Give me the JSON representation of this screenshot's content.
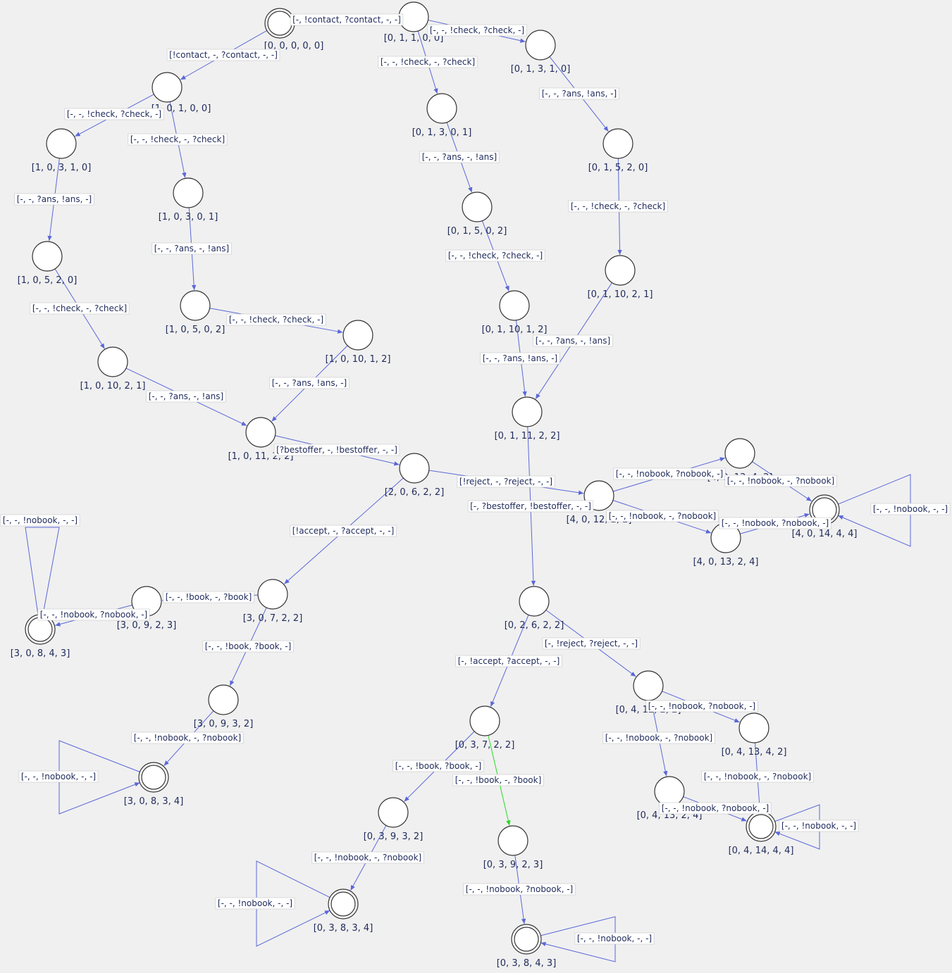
{
  "colors": {
    "edge": "#5a67d8",
    "active_edge": "#22dd22",
    "node_fill": "#ffffff",
    "label_text": "#1f2a5a",
    "background": "#f0f0f0"
  },
  "nodes": [
    {
      "id": "n0",
      "label": "[0, 0, 0, 0, 0]",
      "final": true,
      "start": true
    },
    {
      "id": "n1",
      "label": "[0, 1, 1, 0, 0]"
    },
    {
      "id": "n2",
      "label": "[1, 0, 1, 0, 0]"
    },
    {
      "id": "n3",
      "label": "[0, 1, 3, 1, 0]"
    },
    {
      "id": "n4",
      "label": "[0, 1, 3, 0, 1]"
    },
    {
      "id": "n5",
      "label": "[1, 0, 3, 1, 0]"
    },
    {
      "id": "n6",
      "label": "[1, 0, 3, 0, 1]"
    },
    {
      "id": "n7",
      "label": "[0, 1, 5, 2, 0]"
    },
    {
      "id": "n8",
      "label": "[0, 1, 5, 0, 2]"
    },
    {
      "id": "n9",
      "label": "[1, 0, 5, 2, 0]"
    },
    {
      "id": "n10",
      "label": "[1, 0, 5, 0, 2]"
    },
    {
      "id": "n11",
      "label": "[0, 1, 10, 2, 1]"
    },
    {
      "id": "n12",
      "label": "[0, 1, 10, 1, 2]"
    },
    {
      "id": "n13",
      "label": "[1, 0, 10, 1, 2]"
    },
    {
      "id": "n14",
      "label": "[1, 0, 10, 2, 1]"
    },
    {
      "id": "n15",
      "label": "[0, 1, 11, 2, 2]"
    },
    {
      "id": "n16",
      "label": "[1, 0, 11, 2, 2]"
    },
    {
      "id": "n17",
      "label": "[2, 0, 6, 2, 2]"
    },
    {
      "id": "n18",
      "label": "[4, 0, 12, 2, 2]"
    },
    {
      "id": "n19",
      "label": "[4, 0, 13, 4, 2]"
    },
    {
      "id": "n20",
      "label": "[4, 0, 14, 4, 4]",
      "final": true
    },
    {
      "id": "n21",
      "label": "[4, 0, 13, 2, 4]"
    },
    {
      "id": "n22",
      "label": "[0, 2, 6, 2, 2]"
    },
    {
      "id": "n23",
      "label": "[3, 0, 7, 2, 2]"
    },
    {
      "id": "n24",
      "label": "[3, 0, 9, 2, 3]"
    },
    {
      "id": "n25",
      "label": "[3, 0, 8, 4, 3]",
      "final": true
    },
    {
      "id": "n26",
      "label": "[3, 0, 9, 3, 2]"
    },
    {
      "id": "n27",
      "label": "[3, 0, 8, 3, 4]",
      "final": true
    },
    {
      "id": "n28",
      "label": "[0, 4, 12, 2, 2]"
    },
    {
      "id": "n29",
      "label": "[0, 4, 13, 4, 2]"
    },
    {
      "id": "n30",
      "label": "[0, 4, 13, 2, 4]"
    },
    {
      "id": "n31",
      "label": "[0, 4, 14, 4, 4]",
      "final": true
    },
    {
      "id": "n32",
      "label": "[0, 3, 7, 2, 2]"
    },
    {
      "id": "n33",
      "label": "[0, 3, 9, 3, 2]"
    },
    {
      "id": "n34",
      "label": "[0, 3, 9, 2, 3]"
    },
    {
      "id": "n35",
      "label": "[0, 3, 8, 3, 4]",
      "final": true
    },
    {
      "id": "n36",
      "label": "[0, 3, 8, 4, 3]",
      "final": true
    }
  ],
  "edges": [
    {
      "from": "n0",
      "to": "n1",
      "label": "[-, !contact, ?contact, -, -]"
    },
    {
      "from": "n0",
      "to": "n2",
      "label": "[!contact, -, ?contact, -, -]"
    },
    {
      "from": "n1",
      "to": "n3",
      "label": "[-, -, !check, ?check, -]"
    },
    {
      "from": "n1",
      "to": "n4",
      "label": "[-, -, !check, -, ?check]"
    },
    {
      "from": "n2",
      "to": "n5",
      "label": "[-, -, !check, ?check, -]"
    },
    {
      "from": "n2",
      "to": "n6",
      "label": "[-, -, !check, -, ?check]"
    },
    {
      "from": "n3",
      "to": "n7",
      "label": "[-, -, ?ans, !ans, -]"
    },
    {
      "from": "n4",
      "to": "n8",
      "label": "[-, -, ?ans, -, !ans]"
    },
    {
      "from": "n5",
      "to": "n9",
      "label": "[-, -, ?ans, !ans, -]"
    },
    {
      "from": "n6",
      "to": "n10",
      "label": "[-, -, ?ans, -, !ans]"
    },
    {
      "from": "n7",
      "to": "n11",
      "label": "[-, -, !check, -, ?check]"
    },
    {
      "from": "n8",
      "to": "n12",
      "label": "[-, -, !check, ?check, -]"
    },
    {
      "from": "n10",
      "to": "n13",
      "label": "[-, -, !check, ?check, -]"
    },
    {
      "from": "n9",
      "to": "n14",
      "label": "[-, -, !check, -, ?check]"
    },
    {
      "from": "n11",
      "to": "n15",
      "label": "[-, -, ?ans, -, !ans]"
    },
    {
      "from": "n12",
      "to": "n15",
      "label": "[-, -, ?ans, !ans, -]"
    },
    {
      "from": "n13",
      "to": "n16",
      "label": "[-, -, ?ans, !ans, -]"
    },
    {
      "from": "n14",
      "to": "n16",
      "label": "[-, -, ?ans, -, !ans]"
    },
    {
      "from": "n16",
      "to": "n17",
      "label": "[?bestoffer, -, !bestoffer, -, -]"
    },
    {
      "from": "n15",
      "to": "n22",
      "label": "[-, ?bestoffer, !bestoffer, -, -]"
    },
    {
      "from": "n17",
      "to": "n18",
      "label": "[!reject, -, ?reject, -, -]"
    },
    {
      "from": "n17",
      "to": "n23",
      "label": "[!accept, -, ?accept, -, -]"
    },
    {
      "from": "n18",
      "to": "n19",
      "label": "[-, -, !nobook, ?nobook, -]"
    },
    {
      "from": "n18",
      "to": "n21",
      "label": "[-, -, !nobook, -, ?nobook]"
    },
    {
      "from": "n19",
      "to": "n20",
      "label": "[-, -, !nobook, -, ?nobook]"
    },
    {
      "from": "n21",
      "to": "n20",
      "label": "[-, -, !nobook, ?nobook, -]"
    },
    {
      "from": "n20",
      "to": "n20",
      "label": "[-, -, !nobook, -, -]"
    },
    {
      "from": "n23",
      "to": "n24",
      "label": "[-, -, !book, -, ?book]"
    },
    {
      "from": "n23",
      "to": "n26",
      "label": "[-, -, !book, ?book, -]"
    },
    {
      "from": "n24",
      "to": "n25",
      "label": "[-, -, !nobook, ?nobook, -]"
    },
    {
      "from": "n25",
      "to": "n25",
      "label": "[-, -, !nobook, -, -]"
    },
    {
      "from": "n26",
      "to": "n27",
      "label": "[-, -, !nobook, -, ?nobook]"
    },
    {
      "from": "n27",
      "to": "n27",
      "label": "[-, -, !nobook, -, -]"
    },
    {
      "from": "n22",
      "to": "n28",
      "label": "[-, !reject, ?reject, -, -]"
    },
    {
      "from": "n22",
      "to": "n32",
      "label": "[-, !accept, ?accept, -, -]"
    },
    {
      "from": "n28",
      "to": "n29",
      "label": "[-, -, !nobook, ?nobook, -]"
    },
    {
      "from": "n28",
      "to": "n30",
      "label": "[-, -, !nobook, -, ?nobook]"
    },
    {
      "from": "n29",
      "to": "n31",
      "label": "[-, -, !nobook, -, ?nobook]"
    },
    {
      "from": "n30",
      "to": "n31",
      "label": "[-, -, !nobook, ?nobook, -]"
    },
    {
      "from": "n31",
      "to": "n31",
      "label": "[-, -, !nobook, -, -]"
    },
    {
      "from": "n32",
      "to": "n33",
      "label": "[-, -, !book, ?book, -]"
    },
    {
      "from": "n32",
      "to": "n34",
      "label": "[-, -, !book, -, ?book]",
      "active": true
    },
    {
      "from": "n33",
      "to": "n35",
      "label": "[-, -, !nobook, -, ?nobook]"
    },
    {
      "from": "n35",
      "to": "n35",
      "label": "[-, -, !nobook, -, -]"
    },
    {
      "from": "n34",
      "to": "n36",
      "label": "[-, -, !nobook, ?nobook, -]"
    },
    {
      "from": "n36",
      "to": "n36",
      "label": "[-, -, !nobook, -, -]"
    }
  ]
}
